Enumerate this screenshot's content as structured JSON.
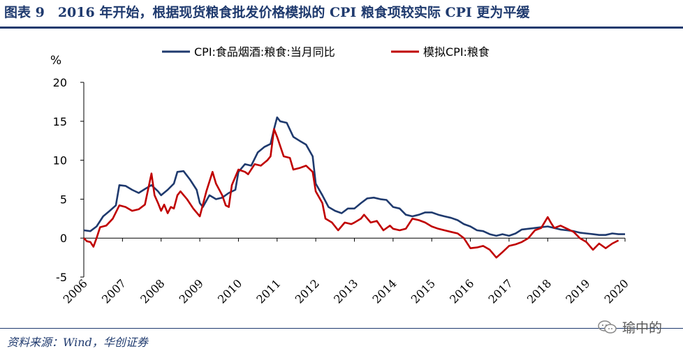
{
  "header": {
    "title": "图表 9　2016 年开始，根据现货粮食批发价格模拟的 CPI 粮食项较实际 CPI 更为平缓"
  },
  "footer": {
    "source": "资料来源：Wind，华创证券",
    "watermark": "瑜中的"
  },
  "colors": {
    "series1": "#1f3a6e",
    "series2": "#c00000",
    "accent": "#1f3a6e"
  },
  "chart_data": {
    "type": "line",
    "title": "",
    "ylabel": "%",
    "xlabel": "",
    "ylim": [
      -5,
      20
    ],
    "yticks": [
      -5,
      0,
      5,
      10,
      15,
      20
    ],
    "xlim": [
      2006,
      2020
    ],
    "xticks": [
      "2006",
      "2007",
      "2008",
      "2009",
      "2010",
      "2011",
      "2012",
      "2013",
      "2014",
      "2015",
      "2016",
      "2017",
      "2018",
      "2019",
      "2020"
    ],
    "legend_position": "top-center",
    "series": [
      {
        "name": "CPI:食品烟酒:粮食:当月同比",
        "color": "#1f3a6e",
        "points": [
          [
            2006.0,
            1.0
          ],
          [
            2006.17,
            0.9
          ],
          [
            2006.33,
            1.5
          ],
          [
            2006.5,
            2.8
          ],
          [
            2006.67,
            3.5
          ],
          [
            2006.83,
            4.2
          ],
          [
            2006.92,
            6.8
          ],
          [
            2007.08,
            6.7
          ],
          [
            2007.25,
            6.2
          ],
          [
            2007.42,
            5.8
          ],
          [
            2007.58,
            6.3
          ],
          [
            2007.75,
            6.8
          ],
          [
            2007.92,
            6.0
          ],
          [
            2008.0,
            5.5
          ],
          [
            2008.17,
            6.2
          ],
          [
            2008.33,
            7.0
          ],
          [
            2008.42,
            8.5
          ],
          [
            2008.58,
            8.6
          ],
          [
            2008.75,
            7.5
          ],
          [
            2008.92,
            6.2
          ],
          [
            2009.0,
            4.5
          ],
          [
            2009.08,
            4.0
          ],
          [
            2009.25,
            5.5
          ],
          [
            2009.42,
            5.0
          ],
          [
            2009.58,
            5.2
          ],
          [
            2009.75,
            5.8
          ],
          [
            2009.92,
            6.2
          ],
          [
            2010.0,
            8.5
          ],
          [
            2010.17,
            9.5
          ],
          [
            2010.33,
            9.3
          ],
          [
            2010.5,
            11.0
          ],
          [
            2010.67,
            11.7
          ],
          [
            2010.83,
            12.1
          ],
          [
            2010.92,
            14.0
          ],
          [
            2011.0,
            15.5
          ],
          [
            2011.08,
            15.0
          ],
          [
            2011.25,
            14.8
          ],
          [
            2011.42,
            13.0
          ],
          [
            2011.58,
            12.5
          ],
          [
            2011.75,
            12.0
          ],
          [
            2011.92,
            10.5
          ],
          [
            2012.0,
            7.0
          ],
          [
            2012.17,
            5.5
          ],
          [
            2012.33,
            4.0
          ],
          [
            2012.5,
            3.5
          ],
          [
            2012.67,
            3.2
          ],
          [
            2012.83,
            3.8
          ],
          [
            2013.0,
            3.8
          ],
          [
            2013.17,
            4.5
          ],
          [
            2013.33,
            5.1
          ],
          [
            2013.5,
            5.2
          ],
          [
            2013.67,
            5.0
          ],
          [
            2013.83,
            4.9
          ],
          [
            2014.0,
            4.0
          ],
          [
            2014.17,
            3.8
          ],
          [
            2014.33,
            3.0
          ],
          [
            2014.5,
            2.8
          ],
          [
            2014.67,
            3.0
          ],
          [
            2014.83,
            3.3
          ],
          [
            2015.0,
            3.3
          ],
          [
            2015.17,
            3.0
          ],
          [
            2015.33,
            2.8
          ],
          [
            2015.5,
            2.6
          ],
          [
            2015.67,
            2.3
          ],
          [
            2015.83,
            1.8
          ],
          [
            2016.0,
            1.5
          ],
          [
            2016.17,
            1.0
          ],
          [
            2016.33,
            0.9
          ],
          [
            2016.5,
            0.5
          ],
          [
            2016.67,
            0.3
          ],
          [
            2016.83,
            0.5
          ],
          [
            2017.0,
            0.3
          ],
          [
            2017.17,
            0.6
          ],
          [
            2017.33,
            1.1
          ],
          [
            2017.5,
            1.2
          ],
          [
            2017.67,
            1.3
          ],
          [
            2017.83,
            1.4
          ],
          [
            2018.0,
            1.5
          ],
          [
            2018.17,
            1.3
          ],
          [
            2018.33,
            1.1
          ],
          [
            2018.5,
            1.0
          ],
          [
            2018.67,
            0.9
          ],
          [
            2018.83,
            0.7
          ],
          [
            2019.0,
            0.6
          ],
          [
            2019.17,
            0.5
          ],
          [
            2019.33,
            0.4
          ],
          [
            2019.5,
            0.4
          ],
          [
            2019.67,
            0.6
          ],
          [
            2019.83,
            0.5
          ],
          [
            2020.0,
            0.5
          ]
        ]
      },
      {
        "name": "模拟CPI:粮食",
        "color": "#c00000",
        "points": [
          [
            2006.0,
            0.0
          ],
          [
            2006.08,
            -0.4
          ],
          [
            2006.17,
            -0.5
          ],
          [
            2006.25,
            -1.1
          ],
          [
            2006.33,
            0.0
          ],
          [
            2006.42,
            1.4
          ],
          [
            2006.58,
            1.6
          ],
          [
            2006.75,
            2.5
          ],
          [
            2006.92,
            4.2
          ],
          [
            2007.08,
            4.0
          ],
          [
            2007.25,
            3.5
          ],
          [
            2007.42,
            3.7
          ],
          [
            2007.58,
            4.3
          ],
          [
            2007.75,
            8.3
          ],
          [
            2007.83,
            5.5
          ],
          [
            2007.92,
            4.5
          ],
          [
            2008.0,
            3.5
          ],
          [
            2008.08,
            4.3
          ],
          [
            2008.17,
            3.2
          ],
          [
            2008.25,
            4.0
          ],
          [
            2008.33,
            3.8
          ],
          [
            2008.42,
            5.5
          ],
          [
            2008.5,
            6.0
          ],
          [
            2008.67,
            5.0
          ],
          [
            2008.83,
            3.8
          ],
          [
            2009.0,
            2.8
          ],
          [
            2009.17,
            6.0
          ],
          [
            2009.33,
            8.5
          ],
          [
            2009.42,
            7.0
          ],
          [
            2009.58,
            5.5
          ],
          [
            2009.67,
            4.2
          ],
          [
            2009.75,
            4.0
          ],
          [
            2009.83,
            6.8
          ],
          [
            2010.0,
            8.8
          ],
          [
            2010.17,
            8.5
          ],
          [
            2010.25,
            8.2
          ],
          [
            2010.42,
            9.5
          ],
          [
            2010.58,
            9.3
          ],
          [
            2010.75,
            10.0
          ],
          [
            2010.83,
            10.5
          ],
          [
            2010.92,
            14.0
          ],
          [
            2011.0,
            13.0
          ],
          [
            2011.17,
            10.5
          ],
          [
            2011.33,
            10.3
          ],
          [
            2011.42,
            8.8
          ],
          [
            2011.58,
            9.0
          ],
          [
            2011.75,
            9.3
          ],
          [
            2011.92,
            8.5
          ],
          [
            2012.0,
            6.0
          ],
          [
            2012.17,
            4.5
          ],
          [
            2012.25,
            2.5
          ],
          [
            2012.42,
            2.0
          ],
          [
            2012.58,
            1.0
          ],
          [
            2012.75,
            2.0
          ],
          [
            2012.92,
            1.8
          ],
          [
            2013.0,
            2.0
          ],
          [
            2013.17,
            2.5
          ],
          [
            2013.25,
            3.0
          ],
          [
            2013.42,
            2.0
          ],
          [
            2013.58,
            2.2
          ],
          [
            2013.75,
            1.0
          ],
          [
            2013.92,
            1.6
          ],
          [
            2014.0,
            1.2
          ],
          [
            2014.17,
            1.0
          ],
          [
            2014.33,
            1.2
          ],
          [
            2014.5,
            2.5
          ],
          [
            2014.67,
            2.3
          ],
          [
            2014.83,
            2.0
          ],
          [
            2015.0,
            1.5
          ],
          [
            2015.17,
            1.2
          ],
          [
            2015.33,
            1.0
          ],
          [
            2015.5,
            0.8
          ],
          [
            2015.67,
            0.6
          ],
          [
            2015.83,
            0.0
          ],
          [
            2016.0,
            -1.3
          ],
          [
            2016.17,
            -1.2
          ],
          [
            2016.33,
            -1.0
          ],
          [
            2016.5,
            -1.5
          ],
          [
            2016.67,
            -2.5
          ],
          [
            2016.83,
            -1.8
          ],
          [
            2017.0,
            -1.0
          ],
          [
            2017.17,
            -0.8
          ],
          [
            2017.33,
            -0.5
          ],
          [
            2017.5,
            0.0
          ],
          [
            2017.67,
            1.0
          ],
          [
            2017.83,
            1.3
          ],
          [
            2018.0,
            2.7
          ],
          [
            2018.08,
            2.0
          ],
          [
            2018.17,
            1.3
          ],
          [
            2018.33,
            1.6
          ],
          [
            2018.5,
            1.2
          ],
          [
            2018.67,
            0.8
          ],
          [
            2018.83,
            0.0
          ],
          [
            2019.0,
            -0.5
          ],
          [
            2019.17,
            -1.5
          ],
          [
            2019.33,
            -0.7
          ],
          [
            2019.5,
            -1.3
          ],
          [
            2019.67,
            -0.7
          ],
          [
            2019.83,
            -0.3
          ]
        ]
      }
    ]
  }
}
